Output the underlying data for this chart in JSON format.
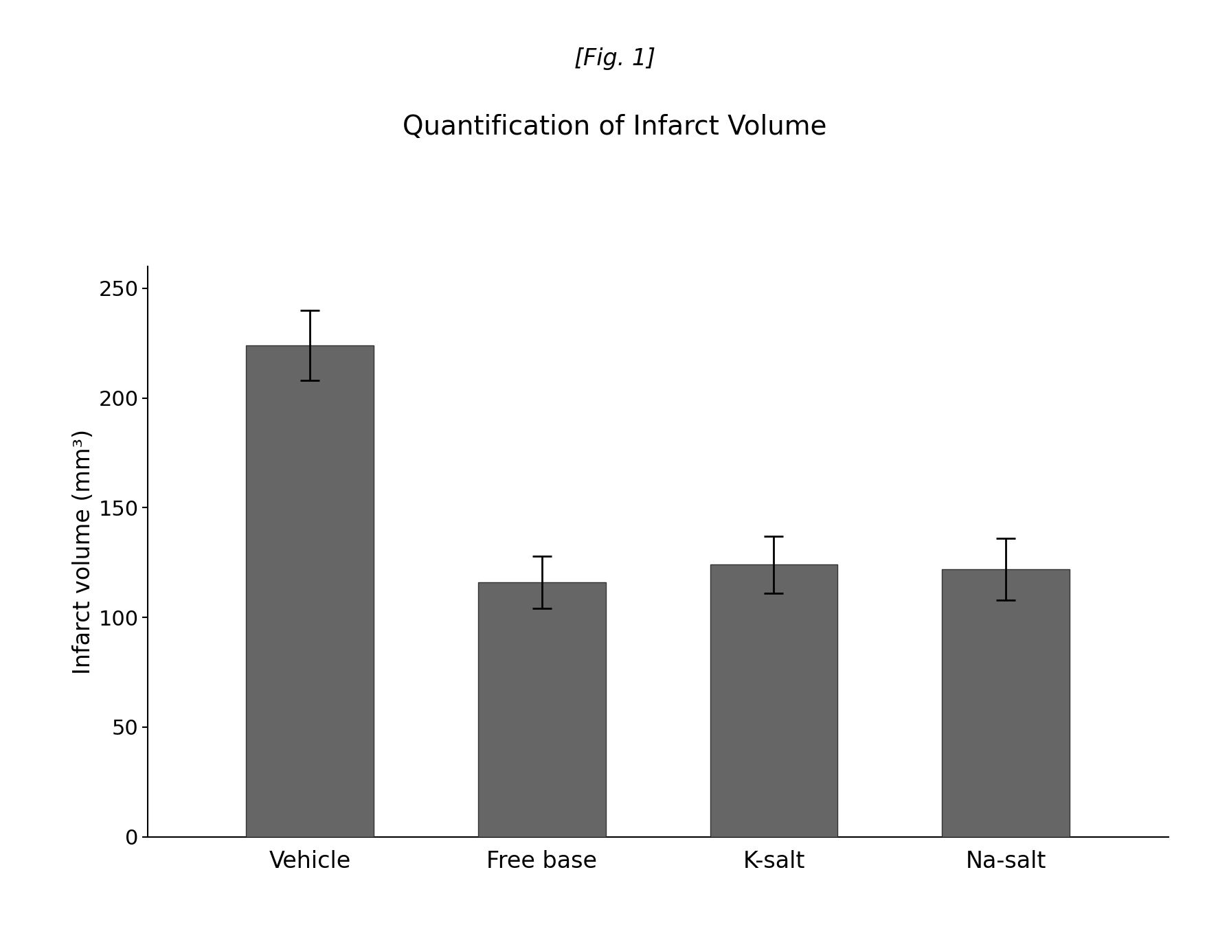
{
  "title_line1": "[Fig. 1]",
  "title_line2": "Quantification of Infarct Volume",
  "categories": [
    "Vehicle",
    "Free base",
    "K-salt",
    "Na-salt"
  ],
  "values": [
    224.0,
    116.0,
    124.0,
    122.0
  ],
  "errors": [
    16.0,
    12.0,
    13.0,
    14.0
  ],
  "ylabel": "Infarct volume (mm³)",
  "ylim": [
    0,
    260
  ],
  "yticks": [
    0,
    50,
    100,
    150,
    200,
    250
  ],
  "bar_color": "#666666",
  "background_color": "#ffffff",
  "bar_width": 0.55,
  "title1_fontsize": 24,
  "title2_fontsize": 28,
  "ylabel_fontsize": 24,
  "tick_fontsize": 22,
  "xtick_fontsize": 24,
  "errorbar_capsize": 10,
  "errorbar_linewidth": 2.0,
  "errorbar_capthick": 2.0
}
